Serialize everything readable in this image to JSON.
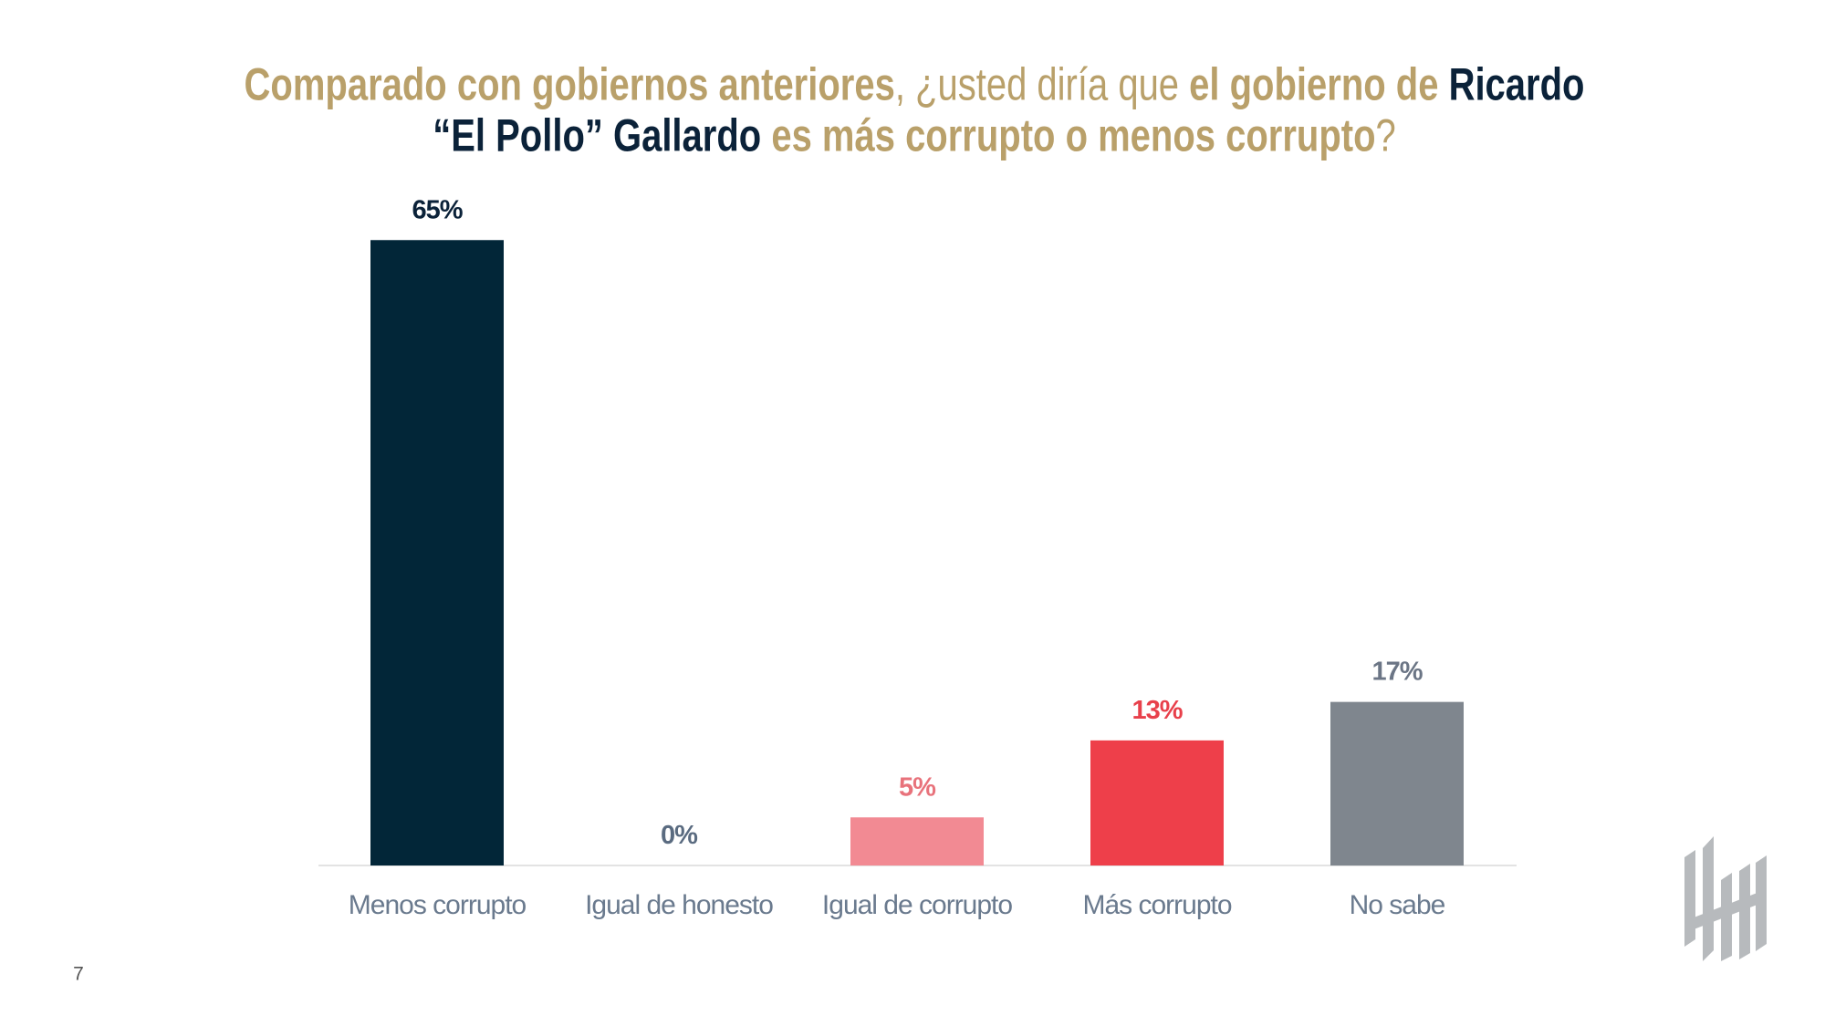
{
  "chart_data": {
    "type": "bar",
    "title_lines": [
      [
        {
          "text": "Comparado con gobiernos anteriores",
          "color": "#b9a06a",
          "weight": "bold"
        },
        {
          "text": ", ¿usted diría que ",
          "color": "#b9a06a",
          "weight": "normal"
        },
        {
          "text": "el gobierno de ",
          "color": "#b9a06a",
          "weight": "bold"
        },
        {
          "text": "Ricardo",
          "color": "#0b2239",
          "weight": "bold"
        }
      ],
      [
        {
          "text": "“El Pollo” Gallardo",
          "color": "#0b2239",
          "weight": "bold"
        },
        {
          "text": " es más corrupto o menos corrupto",
          "color": "#b9a06a",
          "weight": "bold"
        },
        {
          "text": "?",
          "color": "#b9a06a",
          "weight": "normal"
        }
      ]
    ],
    "categories": [
      "Menos corrupto",
      "Igual de honesto",
      "Igual de corrupto",
      "Más corrupto",
      "No sabe"
    ],
    "values": [
      65,
      0,
      5,
      13,
      17
    ],
    "value_labels": [
      "65%",
      "0%",
      "5%",
      "13%",
      "17%"
    ],
    "colors": [
      "#022638",
      "#5a6b80",
      "#f28a93",
      "#ee3f4a",
      "#7f868e"
    ],
    "label_colors": [
      "#0b2239",
      "#5a6b80",
      "#e8727b",
      "#e8404b",
      "#6b7585"
    ],
    "page_number": "7"
  }
}
